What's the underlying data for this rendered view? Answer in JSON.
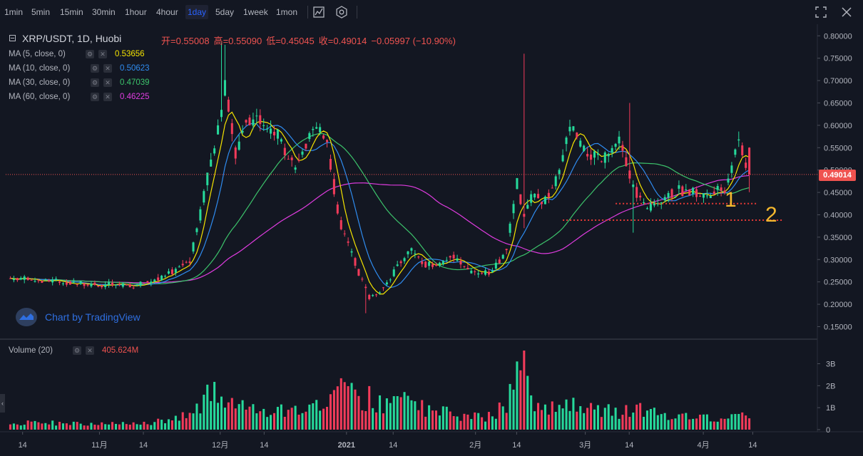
{
  "toolbar": {
    "timeframes": [
      "1min",
      "5min",
      "15min",
      "30min",
      "1hour",
      "4hour",
      "1day",
      "5day",
      "1week",
      "1mon"
    ],
    "active_index": 6,
    "icons": [
      "indicators-icon",
      "settings-icon",
      "fullscreen-icon",
      "close-icon"
    ]
  },
  "symbol": "XRP/USDT, 1D, Huobi",
  "ohlc": {
    "open": "开=0.55008",
    "high": "高=0.55090",
    "low": "低=0.45045",
    "close": "收=0.49014",
    "change": "−0.05997 (−10.90%)"
  },
  "ma": [
    {
      "label": "MA (5, close, 0)",
      "value": "0.53656",
      "color": "#f5e400"
    },
    {
      "label": "MA (10, close, 0)",
      "value": "0.50623",
      "color": "#2f8cf0"
    },
    {
      "label": "MA (30, close, 0)",
      "value": "0.47039",
      "color": "#3cc36b"
    },
    {
      "label": "MA (60, close, 0)",
      "value": "0.46225",
      "color": "#e03ce0"
    }
  ],
  "watermark": "Chart by TradingView",
  "last_price_label": "0.49014",
  "annotations": [
    "1",
    "2"
  ],
  "volume": {
    "label": "Volume (20)",
    "value": "405.624M"
  },
  "colors": {
    "up": "#26d99b",
    "down": "#f23b5a",
    "bg": "#131722",
    "price_line": "#ef5350",
    "annotation": "#f5b82e",
    "level_line": "#e53935"
  },
  "chart_data": {
    "type": "candlestick",
    "ylim": [
      0.13,
      0.81
    ],
    "y_ticks": [
      "0.80000",
      "0.75000",
      "0.70000",
      "0.65000",
      "0.60000",
      "0.55000",
      "0.50000",
      "0.45000",
      "0.40000",
      "0.35000",
      "0.30000",
      "0.25000",
      "0.20000",
      "0.15000"
    ],
    "y_tick_values": [
      0.8,
      0.75,
      0.7,
      0.65,
      0.6,
      0.55,
      0.5,
      0.45,
      0.4,
      0.35,
      0.3,
      0.25,
      0.2,
      0.15
    ],
    "x_ticks": [
      "14",
      "11月",
      "14",
      "12月",
      "14",
      "2021",
      "14",
      "2月",
      "14",
      "3月",
      "14",
      "4月",
      "14"
    ],
    "levels": [
      {
        "name": "1",
        "price": 0.425
      },
      {
        "name": "2",
        "price": 0.388
      }
    ],
    "volume_ticks": [
      "3B",
      "2B",
      "1B",
      "0"
    ],
    "volume_tick_values": [
      3,
      2,
      1,
      0
    ],
    "volume_max": 3.6,
    "anchors": [
      [
        0,
        0.258,
        0.3
      ],
      [
        15,
        0.25,
        0.3
      ],
      [
        25,
        0.245,
        0.25
      ],
      [
        35,
        0.24,
        0.25
      ],
      [
        44,
        0.262,
        0.4
      ],
      [
        51,
        0.3,
        0.7
      ],
      [
        55,
        0.45,
        1.4
      ],
      [
        58,
        0.545,
        1.6
      ],
      [
        61,
        0.7,
        1.4
      ],
      [
        64,
        0.53,
        1.2
      ],
      [
        67,
        0.62,
        1.1
      ],
      [
        71,
        0.61,
        0.9
      ],
      [
        76,
        0.58,
        0.8
      ],
      [
        81,
        0.5,
        0.9
      ],
      [
        86,
        0.59,
        1.0
      ],
      [
        90,
        0.57,
        1.4
      ],
      [
        93,
        0.4,
        2.0
      ],
      [
        96,
        0.33,
        1.7
      ],
      [
        99,
        0.27,
        1.2
      ],
      [
        102,
        0.215,
        1.5
      ],
      [
        105,
        0.23,
        1.2
      ],
      [
        108,
        0.26,
        1.0
      ],
      [
        111,
        0.3,
        1.4
      ],
      [
        114,
        0.32,
        1.6
      ],
      [
        117,
        0.29,
        1.0
      ],
      [
        122,
        0.29,
        0.8
      ],
      [
        126,
        0.31,
        0.7
      ],
      [
        131,
        0.27,
        0.6
      ],
      [
        137,
        0.27,
        0.6
      ],
      [
        141,
        0.33,
        1.2
      ],
      [
        144,
        0.47,
        2.3
      ],
      [
        146,
        0.39,
        2.6
      ],
      [
        148,
        0.44,
        1.5
      ],
      [
        152,
        0.43,
        1.0
      ],
      [
        156,
        0.49,
        1.0
      ],
      [
        159,
        0.6,
        1.2
      ],
      [
        163,
        0.54,
        1.0
      ],
      [
        168,
        0.52,
        0.9
      ],
      [
        173,
        0.56,
        0.8
      ],
      [
        177,
        0.46,
        1.0
      ],
      [
        181,
        0.41,
        0.8
      ],
      [
        185,
        0.44,
        0.7
      ],
      [
        190,
        0.455,
        0.6
      ],
      [
        194,
        0.45,
        0.6
      ],
      [
        198,
        0.44,
        0.6
      ],
      [
        203,
        0.46,
        0.6
      ],
      [
        207,
        0.57,
        0.8
      ],
      [
        210,
        0.49,
        0.55
      ]
    ]
  }
}
